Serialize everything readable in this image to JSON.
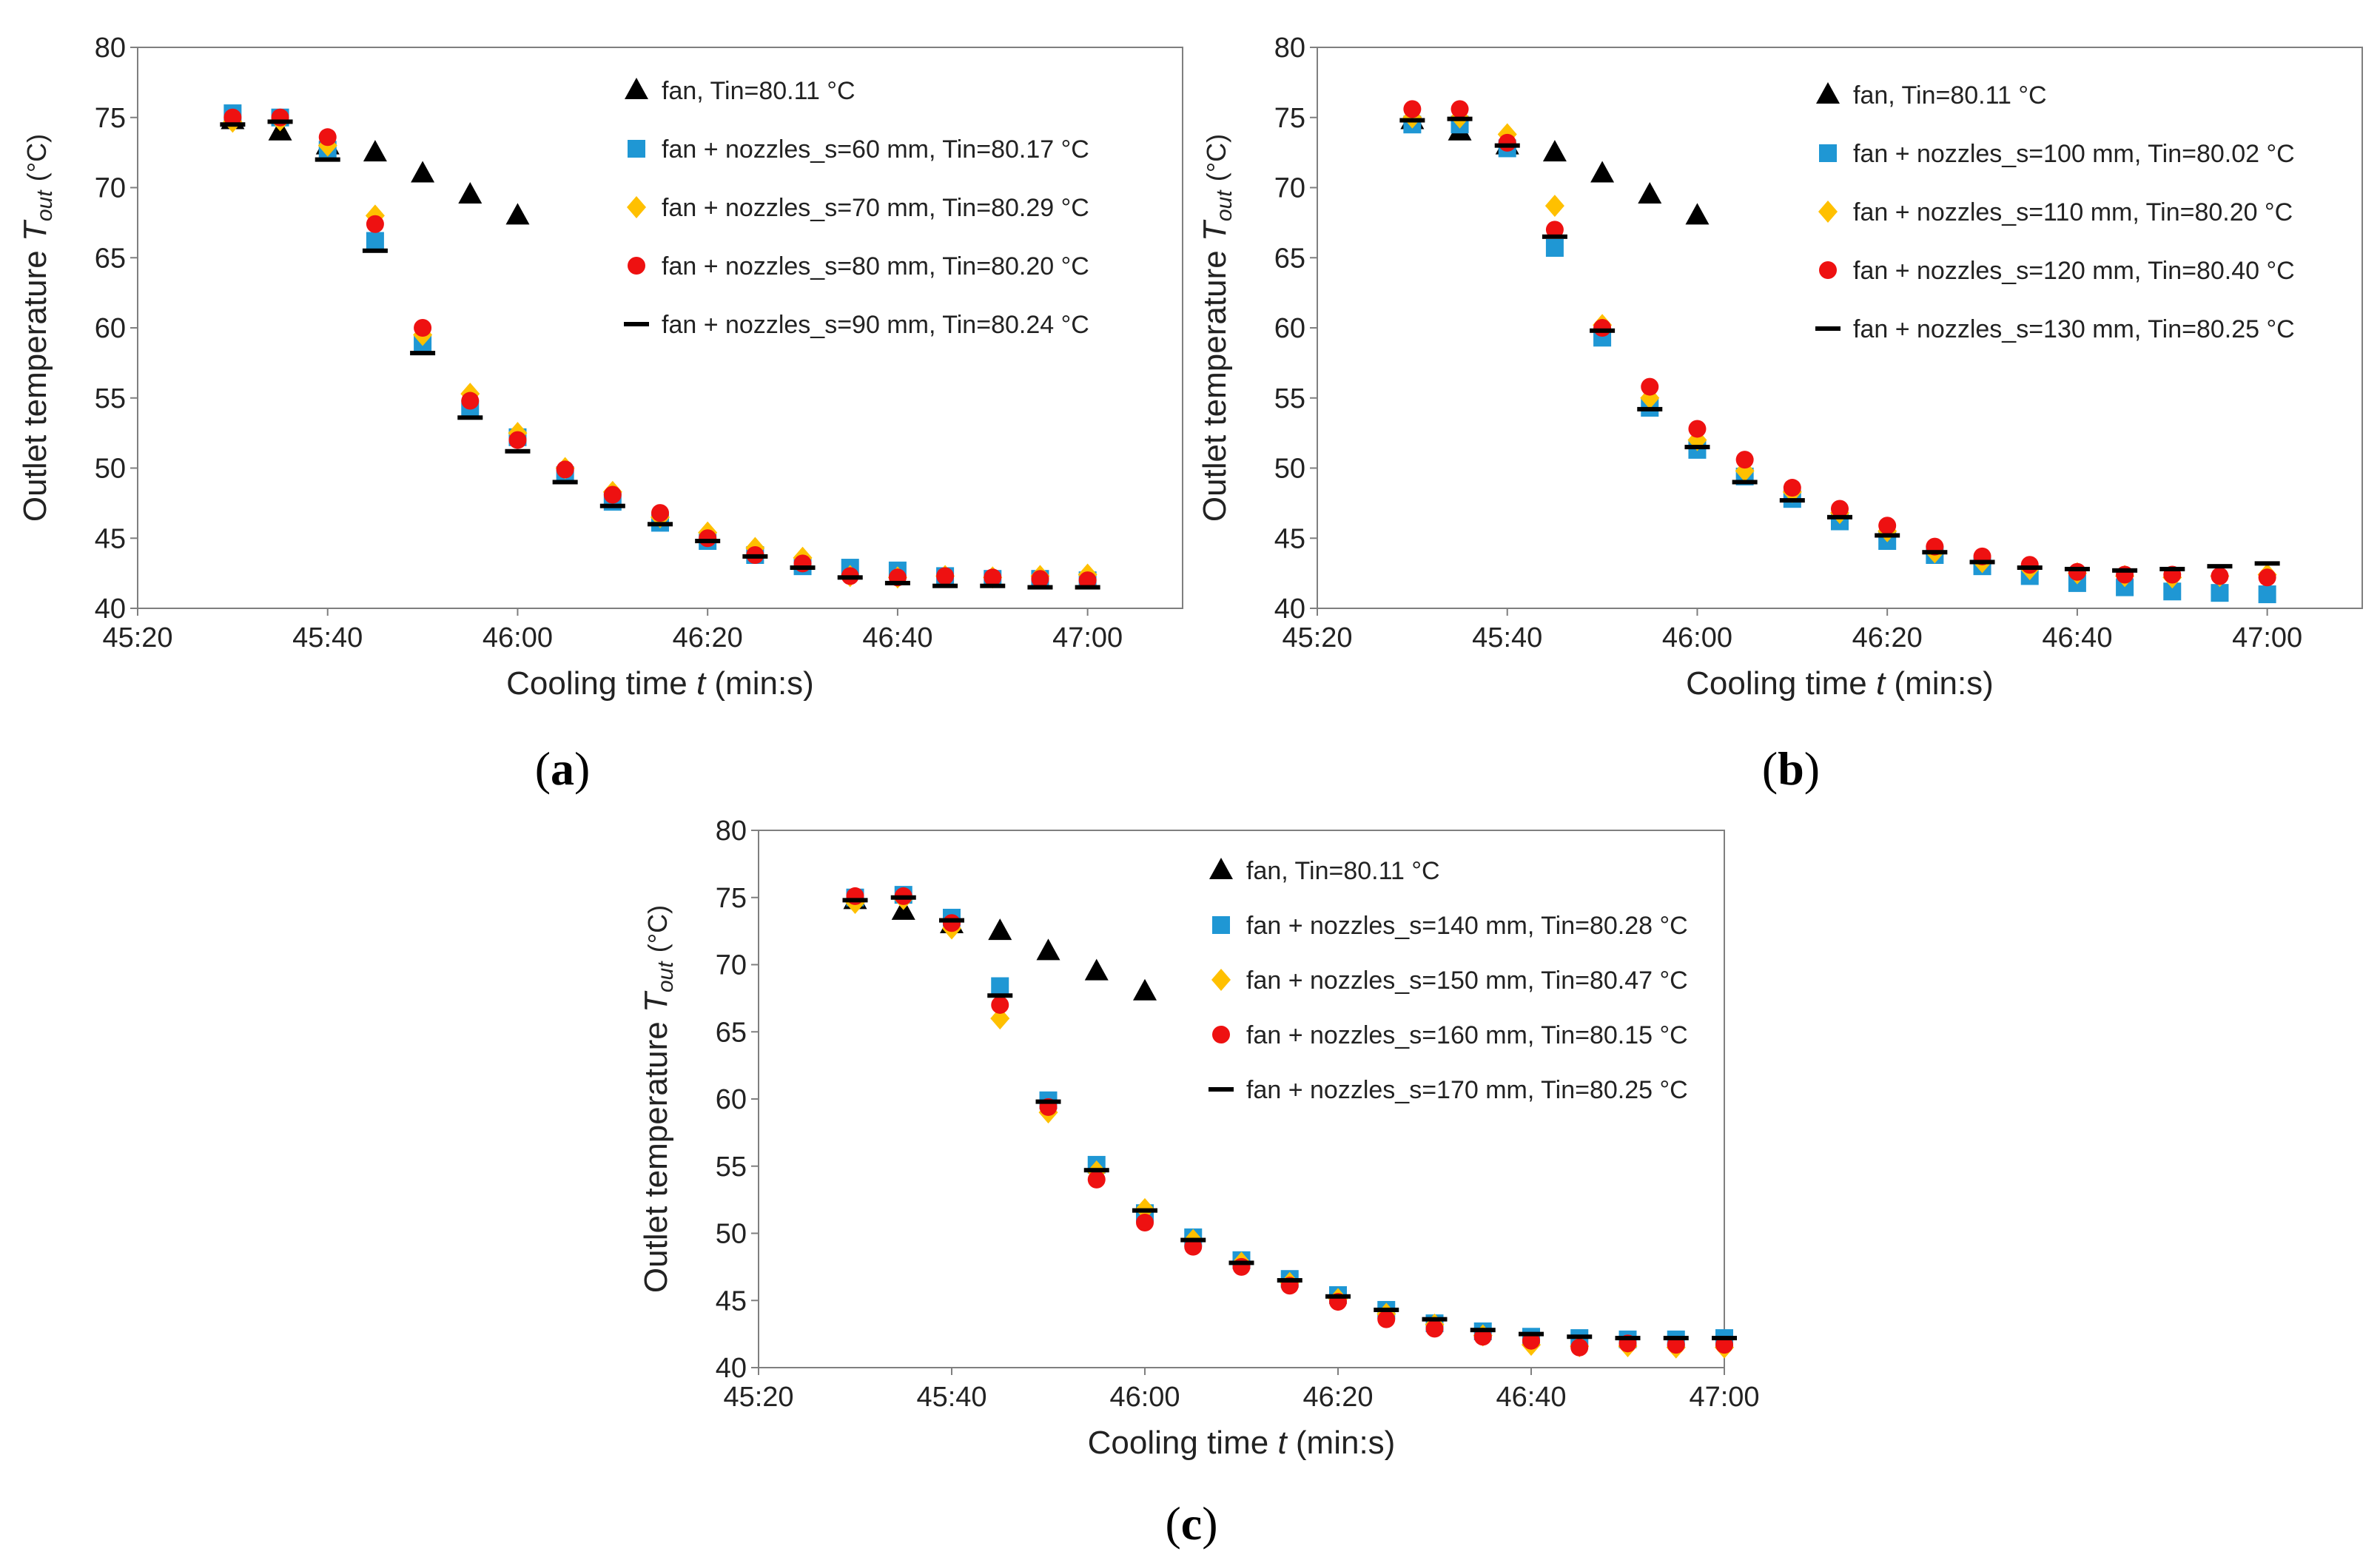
{
  "figure": {
    "colors": {
      "fan": "#000000",
      "s1": "#1f97d4",
      "s2": "#ffc000",
      "s3": "#ee1111",
      "s4": "#000000"
    },
    "x_tick_labels": [
      "45:20",
      "45:40",
      "46:00",
      "46:20",
      "46:40",
      "47:00"
    ]
  },
  "chart_data": [
    {
      "panel": "a",
      "panel_label_open": "(",
      "panel_label_letter": "a",
      "panel_label_close": ")",
      "type": "scatter",
      "xlabel": "Cooling time",
      "xlabel_var": "t",
      "xlabel_unit": "(min:s)",
      "ylabel": "Outlet temperature",
      "ylabel_var": "T",
      "ylabel_sub": "out",
      "ylabel_unit": "(°C)",
      "xlim_seconds": [
        2720,
        2830
      ],
      "ylim": [
        40,
        80
      ],
      "yticks": [
        40,
        45,
        50,
        55,
        60,
        65,
        70,
        75,
        80
      ],
      "legend_position": "top-right",
      "series": [
        {
          "name": "fan, Tin=80.11 °C",
          "marker": "triangle",
          "color_key": "fan",
          "x_seconds": [
            2730,
            2735,
            2740,
            2745,
            2750,
            2755,
            2760
          ],
          "y": [
            74.8,
            74.0,
            73.0,
            72.5,
            71.0,
            69.5,
            68.0
          ]
        },
        {
          "name": "fan + nozzles_s=60 mm, Tin=80.17 °C",
          "marker": "square",
          "color_key": "s1",
          "x_seconds": [
            2730,
            2735,
            2740,
            2745,
            2750,
            2755,
            2760,
            2765,
            2770,
            2775,
            2780,
            2785,
            2790,
            2795,
            2800,
            2805,
            2810,
            2815,
            2820
          ],
          "y": [
            75.3,
            75.0,
            72.7,
            66.2,
            58.8,
            54.2,
            52.2,
            49.5,
            47.6,
            46.1,
            44.8,
            43.8,
            43.0,
            42.9,
            42.7,
            42.3,
            42.1,
            42.1,
            42.0
          ]
        },
        {
          "name": "fan + nozzles_s=70 mm, Tin=80.29 °C",
          "marker": "diamond",
          "color_key": "s2",
          "x_seconds": [
            2730,
            2735,
            2740,
            2745,
            2750,
            2755,
            2760,
            2765,
            2770,
            2775,
            2780,
            2785,
            2790,
            2795,
            2800,
            2805,
            2810,
            2815,
            2820
          ],
          "y": [
            74.7,
            74.8,
            73.0,
            68.0,
            59.5,
            55.3,
            52.5,
            50.0,
            48.3,
            46.5,
            45.4,
            44.3,
            43.6,
            42.3,
            42.2,
            42.3,
            42.2,
            42.3,
            42.4
          ]
        },
        {
          "name": "fan + nozzles_s=80 mm, Tin=80.20 °C",
          "marker": "circle",
          "color_key": "s3",
          "x_seconds": [
            2730,
            2735,
            2740,
            2745,
            2750,
            2755,
            2760,
            2765,
            2770,
            2775,
            2780,
            2785,
            2790,
            2795,
            2800,
            2805,
            2810,
            2815,
            2820
          ],
          "y": [
            75.0,
            75.0,
            73.6,
            67.4,
            60.0,
            54.8,
            52.0,
            49.9,
            48.1,
            46.8,
            45.0,
            43.8,
            43.2,
            42.3,
            42.2,
            42.3,
            42.2,
            42.1,
            42.0
          ]
        },
        {
          "name": "fan + nozzles_s=90 mm, Tin=80.24 °C",
          "marker": "dash",
          "color_key": "s4",
          "x_seconds": [
            2730,
            2735,
            2740,
            2745,
            2750,
            2755,
            2760,
            2765,
            2770,
            2775,
            2780,
            2785,
            2790,
            2795,
            2800,
            2805,
            2810,
            2815,
            2820
          ],
          "y": [
            74.5,
            74.7,
            72.0,
            65.5,
            58.2,
            53.6,
            51.2,
            49.0,
            47.3,
            46.0,
            44.8,
            43.7,
            42.9,
            42.2,
            41.8,
            41.6,
            41.6,
            41.5,
            41.5
          ]
        }
      ]
    },
    {
      "panel": "b",
      "panel_label_open": "(",
      "panel_label_letter": "b",
      "panel_label_close": ")",
      "type": "scatter",
      "xlabel": "Cooling time",
      "xlabel_var": "t",
      "xlabel_unit": "(min:s)",
      "ylabel": "Outlet temperature",
      "ylabel_var": "T",
      "ylabel_sub": "out",
      "ylabel_unit": "(°C)",
      "xlim_seconds": [
        2720,
        2830
      ],
      "ylim": [
        40,
        80
      ],
      "yticks": [
        40,
        45,
        50,
        55,
        60,
        65,
        70,
        75,
        80
      ],
      "legend_position": "top-right",
      "series": [
        {
          "name": "fan, Tin=80.11 °C",
          "marker": "triangle",
          "color_key": "fan",
          "x_seconds": [
            2730,
            2735,
            2740,
            2745,
            2750,
            2755,
            2760
          ],
          "y": [
            74.8,
            74.0,
            73.0,
            72.5,
            71.0,
            69.5,
            68.0
          ]
        },
        {
          "name": "fan + nozzles_s=100 mm, Tin=80.02 °C",
          "marker": "square",
          "color_key": "s1",
          "x_seconds": [
            2730,
            2735,
            2740,
            2745,
            2750,
            2755,
            2760,
            2765,
            2770,
            2775,
            2780,
            2785,
            2790,
            2795,
            2800,
            2805,
            2810,
            2815,
            2820
          ],
          "y": [
            74.5,
            74.5,
            72.8,
            65.7,
            59.3,
            54.3,
            51.3,
            49.4,
            47.8,
            46.2,
            44.8,
            43.8,
            43.0,
            42.3,
            41.8,
            41.5,
            41.2,
            41.1,
            41.0
          ]
        },
        {
          "name": "fan + nozzles_s=110 mm, Tin=80.20 °C",
          "marker": "diamond",
          "color_key": "s2",
          "x_seconds": [
            2730,
            2735,
            2740,
            2745,
            2750,
            2755,
            2760,
            2765,
            2770,
            2775,
            2780,
            2785,
            2790,
            2795,
            2800,
            2805,
            2810,
            2815,
            2820
          ],
          "y": [
            75.0,
            75.0,
            73.8,
            68.7,
            60.2,
            55.0,
            52.0,
            49.8,
            48.3,
            46.8,
            45.5,
            44.0,
            43.3,
            42.8,
            42.5,
            42.3,
            42.2,
            42.3,
            42.4
          ]
        },
        {
          "name": "fan + nozzles_s=120 mm, Tin=80.40 °C",
          "marker": "circle",
          "color_key": "s3",
          "x_seconds": [
            2730,
            2735,
            2740,
            2745,
            2750,
            2755,
            2760,
            2765,
            2770,
            2775,
            2780,
            2785,
            2790,
            2795,
            2800,
            2805,
            2810,
            2815,
            2820
          ],
          "y": [
            75.6,
            75.6,
            73.2,
            67.0,
            60.0,
            55.8,
            52.8,
            50.6,
            48.6,
            47.1,
            45.9,
            44.4,
            43.7,
            43.1,
            42.6,
            42.4,
            42.4,
            42.3,
            42.2
          ]
        },
        {
          "name": "fan + nozzles_s=130 mm, Tin=80.25 °C",
          "marker": "dash",
          "color_key": "s4",
          "x_seconds": [
            2730,
            2735,
            2740,
            2745,
            2750,
            2755,
            2760,
            2765,
            2770,
            2775,
            2780,
            2785,
            2790,
            2795,
            2800,
            2805,
            2810,
            2815,
            2820
          ],
          "y": [
            74.8,
            74.9,
            73.0,
            66.5,
            59.8,
            54.2,
            51.5,
            49.0,
            47.7,
            46.5,
            45.2,
            44.0,
            43.3,
            42.9,
            42.8,
            42.7,
            42.8,
            43.0,
            43.2
          ]
        }
      ]
    },
    {
      "panel": "c",
      "panel_label_open": "(",
      "panel_label_letter": "c",
      "panel_label_close": ")",
      "type": "scatter",
      "xlabel": "Cooling time",
      "xlabel_var": "t",
      "xlabel_unit": "(min:s)",
      "ylabel": "Outlet temperature",
      "ylabel_var": "T",
      "ylabel_sub": "out",
      "ylabel_unit": "(°C)",
      "xlim_seconds": [
        2720,
        2820
      ],
      "ylim": [
        40,
        80
      ],
      "yticks": [
        40,
        45,
        50,
        55,
        60,
        65,
        70,
        75,
        80
      ],
      "legend_position": "top-right",
      "series": [
        {
          "name": "fan, Tin=80.11 °C",
          "marker": "triangle",
          "color_key": "fan",
          "x_seconds": [
            2730,
            2735,
            2740,
            2745,
            2750,
            2755,
            2760
          ],
          "y": [
            74.8,
            74.0,
            73.0,
            72.5,
            71.0,
            69.5,
            68.0
          ]
        },
        {
          "name": "fan + nozzles_s=140 mm, Tin=80.28 °C",
          "marker": "square",
          "color_key": "s1",
          "x_seconds": [
            2730,
            2735,
            2740,
            2745,
            2750,
            2755,
            2760,
            2765,
            2770,
            2775,
            2780,
            2785,
            2790,
            2795,
            2800,
            2805,
            2810,
            2815,
            2820
          ],
          "y": [
            75.0,
            75.2,
            73.5,
            68.4,
            59.9,
            55.1,
            51.5,
            49.7,
            48.0,
            46.6,
            45.4,
            44.3,
            43.3,
            42.7,
            42.3,
            42.2,
            42.1,
            42.1,
            42.2
          ]
        },
        {
          "name": "fan + nozzles_s=150 mm, Tin=80.47 °C",
          "marker": "diamond",
          "color_key": "s2",
          "x_seconds": [
            2730,
            2735,
            2740,
            2745,
            2750,
            2755,
            2760,
            2765,
            2770,
            2775,
            2780,
            2785,
            2790,
            2795,
            2800,
            2805,
            2810,
            2815,
            2820
          ],
          "y": [
            74.6,
            74.9,
            72.7,
            66.0,
            59.0,
            54.6,
            51.8,
            49.5,
            47.8,
            46.3,
            45.1,
            44.0,
            43.2,
            42.4,
            41.7,
            41.6,
            41.6,
            41.5,
            41.5
          ]
        },
        {
          "name": "fan + nozzles_s=160 mm, Tin=80.15 °C",
          "marker": "circle",
          "color_key": "s3",
          "x_seconds": [
            2730,
            2735,
            2740,
            2745,
            2750,
            2755,
            2760,
            2765,
            2770,
            2775,
            2780,
            2785,
            2790,
            2795,
            2800,
            2805,
            2810,
            2815,
            2820
          ],
          "y": [
            75.1,
            75.1,
            73.1,
            67.0,
            59.4,
            54.0,
            50.8,
            49.0,
            47.5,
            46.1,
            44.9,
            43.6,
            42.9,
            42.3,
            42.0,
            41.5,
            41.8,
            41.7,
            41.7
          ]
        },
        {
          "name": "fan + nozzles_s=170 mm, Tin=80.25 °C",
          "marker": "dash",
          "color_key": "s4",
          "x_seconds": [
            2730,
            2735,
            2740,
            2745,
            2750,
            2755,
            2760,
            2765,
            2770,
            2775,
            2780,
            2785,
            2790,
            2795,
            2800,
            2805,
            2810,
            2815,
            2820
          ],
          "y": [
            74.8,
            75.0,
            73.3,
            67.7,
            59.8,
            54.7,
            51.7,
            49.5,
            47.8,
            46.5,
            45.3,
            44.3,
            43.6,
            42.8,
            42.5,
            42.3,
            42.2,
            42.2,
            42.2
          ]
        }
      ]
    }
  ]
}
